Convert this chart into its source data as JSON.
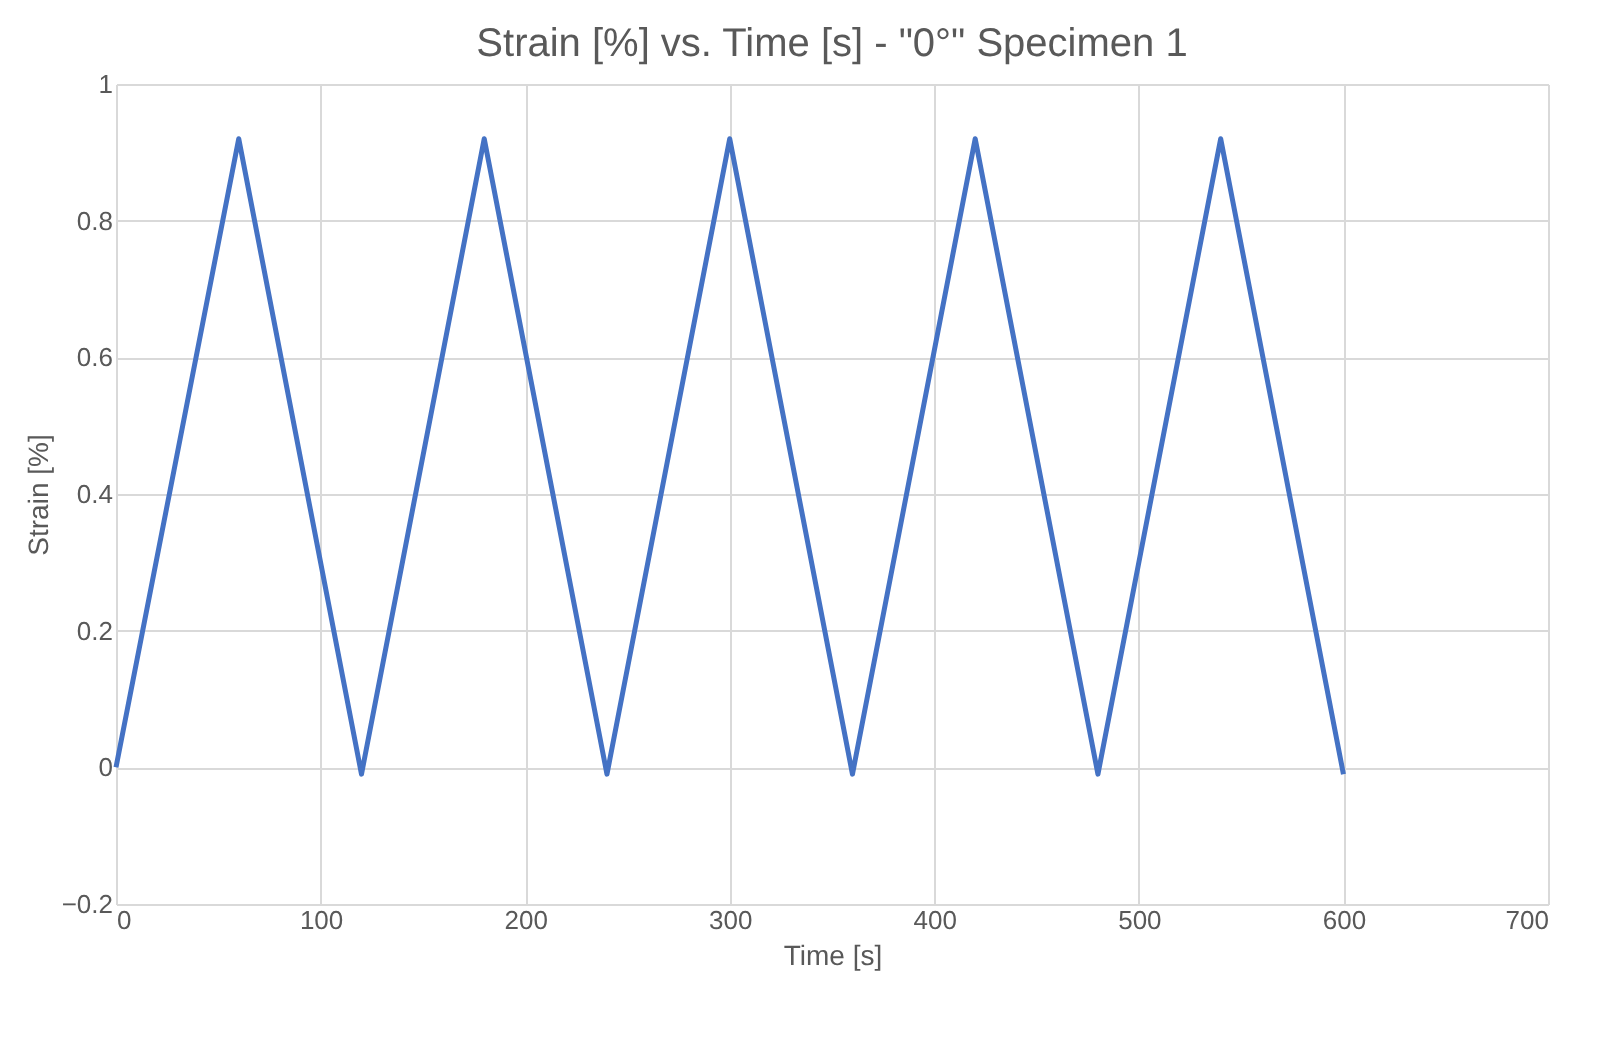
{
  "chart_data": {
    "type": "line",
    "title": "Strain [%] vs. Time [s] - \"0°\" Specimen 1",
    "xlabel": "Time [s]",
    "ylabel": "Strain [%]",
    "x": [
      0,
      60,
      120,
      180,
      240,
      300,
      360,
      420,
      480,
      540,
      600
    ],
    "series": [
      {
        "color": "#4472c4",
        "values": [
          0,
          0.92,
          -0.01,
          0.92,
          -0.01,
          0.92,
          -0.01,
          0.92,
          -0.01,
          0.92,
          -0.01
        ]
      }
    ],
    "xlim": [
      0,
      700
    ],
    "xticks": [
      0,
      100,
      200,
      300,
      400,
      500,
      600,
      700
    ],
    "ylim": [
      -0.2,
      1
    ],
    "yticks": [
      -0.2,
      0,
      0.2,
      0.4,
      0.6,
      0.8,
      1
    ],
    "grid": true,
    "marker": "none",
    "line_style": "solid",
    "legend": false
  }
}
